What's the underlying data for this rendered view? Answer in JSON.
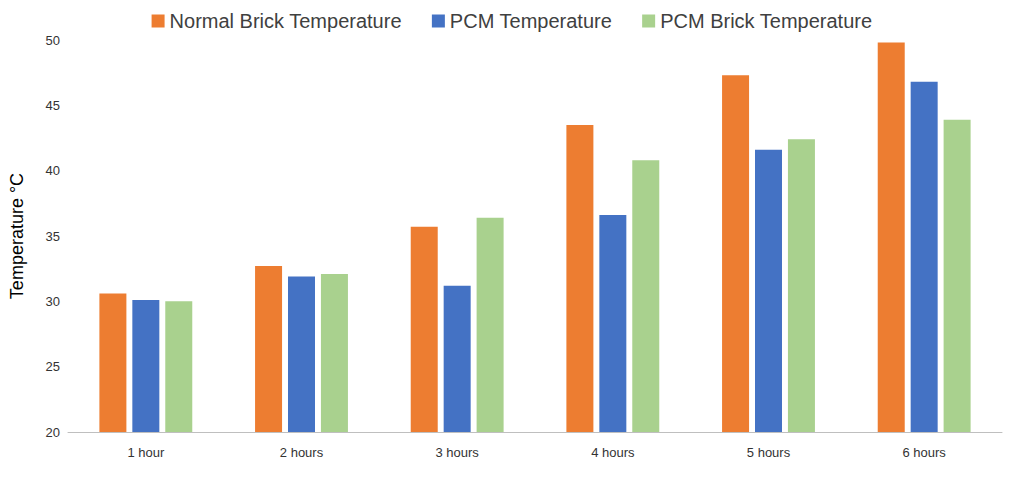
{
  "chart_data": {
    "type": "bar",
    "y_label": "Temperature °C",
    "categories": [
      "1 hour",
      "2 hours",
      "3 hours",
      "4 hours",
      "5 hours",
      "6 hours"
    ],
    "series": [
      {
        "name": "Normal Brick Temperature",
        "color": "#ed7d31",
        "values": [
          30.6,
          32.7,
          35.7,
          43.5,
          47.3,
          49.8
        ]
      },
      {
        "name": "PCM Temperature",
        "color": "#4472c4",
        "values": [
          30.1,
          31.9,
          31.2,
          36.6,
          41.6,
          46.8
        ]
      },
      {
        "name": "PCM Brick Temperature",
        "color": "#a9d18e",
        "values": [
          30.0,
          32.1,
          36.4,
          40.8,
          42.4,
          43.9
        ]
      }
    ],
    "ylim": [
      20,
      50
    ],
    "yticks": [
      20,
      25,
      30,
      35,
      40,
      45,
      50
    ],
    "grid": false,
    "legend": "top"
  }
}
